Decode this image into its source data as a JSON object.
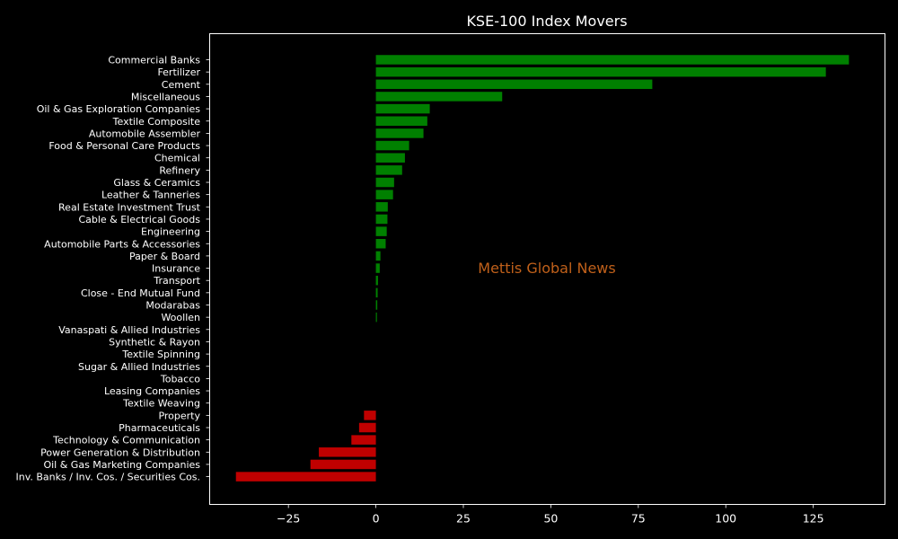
{
  "chart_data": {
    "type": "bar",
    "orientation": "horizontal",
    "title": "KSE-100 Index Movers",
    "xlabel": "",
    "ylabel": "",
    "xlim": [
      -47.5,
      145.5
    ],
    "xticks": [
      -25,
      0,
      25,
      50,
      75,
      100,
      125
    ],
    "grid": false,
    "legend": "none",
    "watermark": "Mettis Global News",
    "colors": {
      "positive": "#008000",
      "negative": "#c00000",
      "background": "#000000",
      "text": "#ffffff",
      "watermark": "#c0601a"
    },
    "categories": [
      "Commercial Banks",
      "Fertilizer",
      "Cement",
      "Miscellaneous",
      "Oil & Gas Exploration Companies",
      "Textile Composite",
      "Automobile Assembler",
      "Food & Personal Care Products",
      "Chemical",
      "Refinery",
      "Glass & Ceramics",
      "Leather & Tanneries",
      "Real Estate Investment Trust",
      "Cable & Electrical Goods",
      "Engineering",
      "Automobile Parts & Accessories",
      "Paper & Board",
      "Insurance",
      "Transport",
      "Close - End Mutual Fund",
      "Modarabas",
      "Woollen",
      "Vanaspati & Allied Industries",
      "Synthetic & Rayon",
      "Textile Spinning",
      "Sugar & Allied Industries",
      "Tobacco",
      "Leasing Companies",
      "Textile Weaving",
      "Property",
      "Pharmaceuticals",
      "Technology & Communication",
      "Power Generation & Distribution",
      "Oil & Gas Marketing Companies",
      "Inv. Banks / Inv. Cos. / Securities Cos."
    ],
    "values": [
      135.2,
      128.6,
      79.0,
      36.1,
      15.4,
      14.7,
      13.6,
      9.5,
      8.3,
      7.5,
      5.2,
      4.9,
      3.4,
      3.3,
      3.1,
      2.8,
      1.3,
      1.1,
      0.6,
      0.5,
      0.4,
      0.3,
      0,
      0,
      0,
      0,
      0,
      0,
      0,
      -3.4,
      -4.8,
      -7.0,
      -16.3,
      -18.7,
      -40.0
    ]
  }
}
